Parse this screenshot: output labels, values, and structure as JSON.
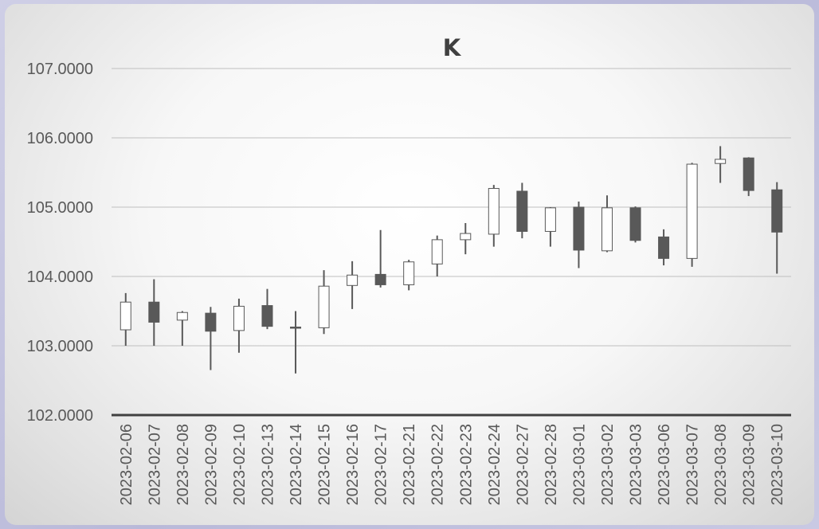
{
  "chart_data": {
    "type": "candlestick",
    "title": "K",
    "xlabel": "",
    "ylabel": "",
    "ylim": [
      102,
      107
    ],
    "yticks": [
      "102.0000",
      "103.0000",
      "104.0000",
      "105.0000",
      "106.0000",
      "107.0000"
    ],
    "grid": true,
    "legend": "none",
    "colors": {
      "up_fill": "#ffffff",
      "down_fill": "#595959",
      "outline": "#595959",
      "grid": "#bfbfbf",
      "axis": "#404040"
    },
    "categories": [
      "2023-02-06",
      "2023-02-07",
      "2023-02-08",
      "2023-02-09",
      "2023-02-10",
      "2023-02-13",
      "2023-02-14",
      "2023-02-15",
      "2023-02-16",
      "2023-02-17",
      "2023-02-21",
      "2023-02-22",
      "2023-02-23",
      "2023-02-24",
      "2023-02-27",
      "2023-02-28",
      "2023-03-01",
      "2023-03-02",
      "2023-03-03",
      "2023-03-06",
      "2023-03-07",
      "2023-03-08",
      "2023-03-09",
      "2023-03-10"
    ],
    "candles": [
      {
        "open": 103.23,
        "high": 103.76,
        "low": 103.0,
        "close": 103.63
      },
      {
        "open": 103.63,
        "high": 103.96,
        "low": 103.0,
        "close": 103.34
      },
      {
        "open": 103.37,
        "high": 103.5,
        "low": 103.0,
        "close": 103.48
      },
      {
        "open": 103.47,
        "high": 103.56,
        "low": 102.65,
        "close": 103.21
      },
      {
        "open": 103.22,
        "high": 103.68,
        "low": 102.9,
        "close": 103.57
      },
      {
        "open": 103.58,
        "high": 103.82,
        "low": 103.24,
        "close": 103.28
      },
      {
        "open": 103.27,
        "high": 103.5,
        "low": 102.6,
        "close": 103.26
      },
      {
        "open": 103.26,
        "high": 104.09,
        "low": 103.17,
        "close": 103.86
      },
      {
        "open": 103.87,
        "high": 104.22,
        "low": 103.53,
        "close": 104.02
      },
      {
        "open": 104.03,
        "high": 104.67,
        "low": 103.84,
        "close": 103.88
      },
      {
        "open": 103.88,
        "high": 104.24,
        "low": 103.8,
        "close": 104.21
      },
      {
        "open": 104.18,
        "high": 104.59,
        "low": 104.0,
        "close": 104.53
      },
      {
        "open": 104.53,
        "high": 104.77,
        "low": 104.32,
        "close": 104.62
      },
      {
        "open": 104.61,
        "high": 105.32,
        "low": 104.43,
        "close": 105.27
      },
      {
        "open": 105.23,
        "high": 105.35,
        "low": 104.55,
        "close": 104.65
      },
      {
        "open": 104.65,
        "high": 105.0,
        "low": 104.43,
        "close": 104.99
      },
      {
        "open": 105.0,
        "high": 105.08,
        "low": 104.12,
        "close": 104.38
      },
      {
        "open": 104.37,
        "high": 105.17,
        "low": 104.35,
        "close": 104.99
      },
      {
        "open": 104.99,
        "high": 105.01,
        "low": 104.49,
        "close": 104.52
      },
      {
        "open": 104.57,
        "high": 104.68,
        "low": 104.16,
        "close": 104.26
      },
      {
        "open": 104.26,
        "high": 105.64,
        "low": 104.14,
        "close": 105.62
      },
      {
        "open": 105.63,
        "high": 105.88,
        "low": 105.35,
        "close": 105.69
      },
      {
        "open": 105.71,
        "high": 105.72,
        "low": 105.16,
        "close": 105.24
      },
      {
        "open": 105.25,
        "high": 105.36,
        "low": 104.04,
        "close": 104.64
      }
    ]
  }
}
